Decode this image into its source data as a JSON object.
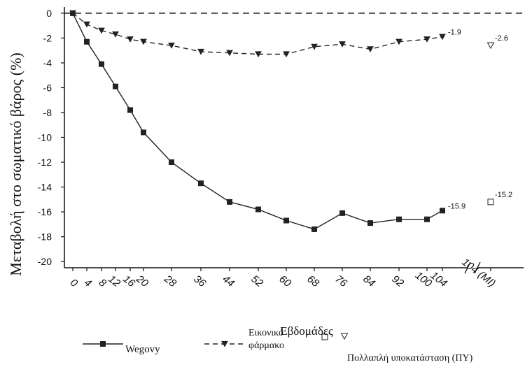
{
  "chart_data": {
    "type": "line",
    "title": "",
    "xlabel": "Εβδομάδες",
    "ylabel": "Μεταβολή στο σωματικό βάρος (%)",
    "ylim": [
      -20.5,
      0.5
    ],
    "y_ticks": [
      0,
      -2,
      -4,
      -6,
      -8,
      -10,
      -12,
      -14,
      -16,
      -18,
      -20
    ],
    "x_tick_labels": [
      "0",
      "4",
      "8",
      "12",
      "16",
      "20",
      "28",
      "36",
      "44",
      "52",
      "60",
      "68",
      "76",
      "84",
      "92",
      "100",
      "104",
      "104 (MI)"
    ],
    "grid": false,
    "reference_line": 0,
    "series": [
      {
        "name": "Wegovy",
        "style": "solid",
        "marker": "filled-square",
        "color": "#222222",
        "x": [
          0,
          4,
          8,
          12,
          16,
          20,
          28,
          36,
          44,
          52,
          60,
          68,
          76,
          84,
          92,
          100,
          104
        ],
        "values": [
          0,
          -2.3,
          -4.1,
          -5.9,
          -7.8,
          -9.6,
          -12.0,
          -13.7,
          -15.2,
          -15.8,
          -16.7,
          -17.4,
          -16.1,
          -16.9,
          -16.6,
          -16.6,
          -15.9
        ],
        "end_label": "-15.9",
        "mi_value": -15.2,
        "mi_label": "-15.2",
        "mi_marker": "open-square"
      },
      {
        "name": "Εικονικό φάρμακο",
        "name_lines": [
          "Εικονικό",
          "φάρμακο"
        ],
        "style": "dashed",
        "marker": "filled-triangle-down",
        "color": "#222222",
        "x": [
          0,
          4,
          8,
          12,
          16,
          20,
          28,
          36,
          44,
          52,
          60,
          68,
          76,
          84,
          92,
          100,
          104
        ],
        "values": [
          0,
          -0.9,
          -1.4,
          -1.7,
          -2.1,
          -2.3,
          -2.6,
          -3.1,
          -3.2,
          -3.3,
          -3.3,
          -2.7,
          -2.5,
          -2.9,
          -2.3,
          -2.1,
          -1.9
        ],
        "end_label": "-1.9",
        "mi_value": -2.6,
        "mi_label": "-2.6",
        "mi_marker": "open-triangle-down"
      }
    ],
    "mi_legend_label": "Πολλαπλή υποκατάσταση (ΠΥ)",
    "legend_position": "bottom"
  }
}
